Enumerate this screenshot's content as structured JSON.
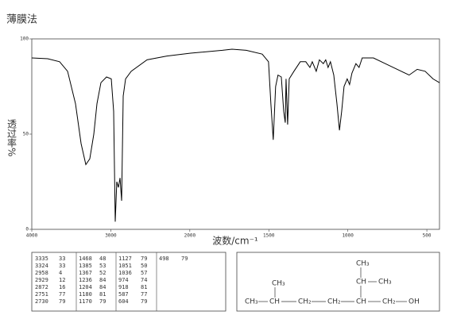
{
  "chart_data": {
    "type": "line",
    "title": "薄膜法",
    "xlabel": "波数/cm⁻¹",
    "ylabel": "透过率%",
    "x": [
      4000,
      3799,
      3648,
      3547,
      3447,
      3376,
      3316,
      3266,
      3215,
      3175,
      3125,
      3054,
      2994,
      2964,
      2944,
      2924,
      2904,
      2883,
      2863,
      2843,
      2813,
      2742,
      2541,
      2290,
      1995,
      1794,
      1733,
      1643,
      1542,
      1502,
      1487,
      1472,
      1457,
      1442,
      1421,
      1406,
      1396,
      1391,
      1381,
      1371,
      1341,
      1301,
      1266,
      1240,
      1225,
      1200,
      1180,
      1155,
      1140,
      1125,
      1110,
      1089,
      1069,
      1053,
      1039,
      1024,
      1004,
      989,
      974,
      949,
      929,
      909,
      838,
      763,
      687,
      612,
      561,
      511,
      461,
      420
    ],
    "series": [
      {
        "color": "#000000",
        "values": [
          90,
          89.6,
          88,
          83,
          66,
          45,
          34,
          37,
          50,
          66,
          77,
          80,
          79,
          62,
          4,
          25,
          22,
          27,
          15,
          70,
          79,
          83,
          89,
          91,
          92.5,
          94,
          94.6,
          94,
          92,
          88,
          66,
          47,
          75,
          81,
          80,
          62,
          56,
          79,
          55,
          79,
          83,
          88,
          88,
          85,
          88,
          83,
          89,
          87,
          89,
          85,
          88,
          81,
          66,
          52,
          62,
          75,
          79,
          76,
          82,
          87,
          85,
          90,
          90,
          87,
          84,
          81,
          84,
          83,
          79,
          77
        ]
      }
    ],
    "xlim": [
      4000,
      420
    ],
    "ylim": [
      0,
      100
    ],
    "xticks": [
      4000,
      3000,
      2000,
      1500,
      1000,
      500
    ],
    "yticks": [
      0,
      50,
      100
    ]
  },
  "peak_table": [
    [
      [
        "3335",
        "33"
      ],
      [
        "3324",
        "33"
      ],
      [
        "2958",
        "4"
      ],
      [
        "2929",
        "12"
      ],
      [
        "2872",
        "16"
      ],
      [
        "2751",
        "77"
      ],
      [
        "2730",
        "79"
      ]
    ],
    [
      [
        "1468",
        "48"
      ],
      [
        "1385",
        "53"
      ],
      [
        "1367",
        "52"
      ],
      [
        "1236",
        "84"
      ],
      [
        "1204",
        "84"
      ],
      [
        "1180",
        "81"
      ],
      [
        "1170",
        "79"
      ]
    ],
    [
      [
        "1127",
        "79"
      ],
      [
        "1051",
        "50"
      ],
      [
        "1036",
        "57"
      ],
      [
        "974",
        "74"
      ],
      [
        "918",
        "81"
      ],
      [
        "587",
        "77"
      ],
      [
        "604",
        "79"
      ]
    ],
    [
      [
        "498",
        "79"
      ]
    ]
  ],
  "structure": {
    "chain": [
      "CH₃",
      "CH",
      "CH₂",
      "CH₂",
      "CH",
      "CH₂",
      "OH"
    ],
    "branch1": "CH₃",
    "branch2_top": "CH₃",
    "branch2_ch": "CH",
    "branch2_side": "CH₃"
  }
}
